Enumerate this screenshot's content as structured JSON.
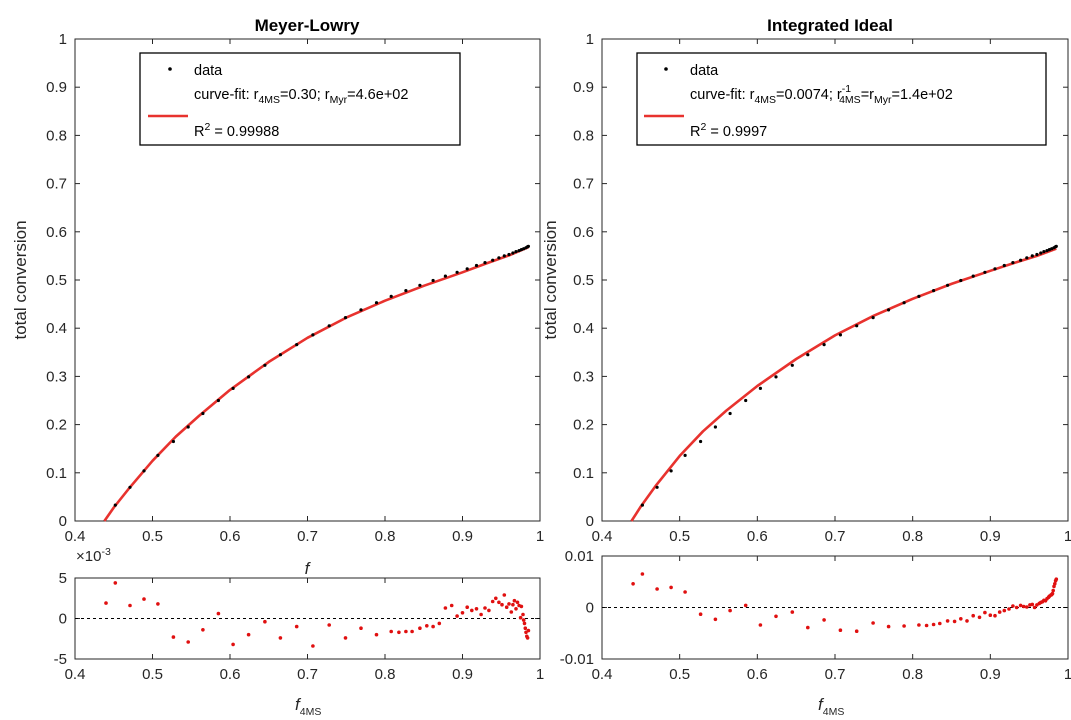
{
  "colors": {
    "data": "#000000",
    "fit": "#e8322e",
    "residual": "#e01010",
    "axis": "#262626"
  },
  "chart_data": [
    {
      "type": "scatter",
      "id": "meyer-lowry-main",
      "title": "Meyer-Lowry",
      "ylabel": "total conversion",
      "xlabel": "f",
      "xlim": [
        0.4,
        1
      ],
      "ylim": [
        0,
        1
      ],
      "xticks": [
        "0.4",
        "0.5",
        "0.6",
        "0.7",
        "0.8",
        "0.9",
        "1"
      ],
      "yticks": [
        "0",
        "0.1",
        "0.2",
        "0.3",
        "0.4",
        "0.5",
        "0.6",
        "0.7",
        "0.8",
        "0.9",
        "1"
      ],
      "legend": {
        "placement": "top",
        "data_label": "data",
        "fit_a": "curve-fit: r",
        "fit_a_sub": "4MS",
        "fit_b": "=0.30; r",
        "fit_b_sub": "Myr",
        "fit_c": "=4.6e+02",
        "r2_a": "R",
        "r2_sup": "2",
        "r2_b": " = 0.99988"
      },
      "series": [
        {
          "kind": "points",
          "x": [
            0.452,
            0.471,
            0.489,
            0.507,
            0.527,
            0.546,
            0.565,
            0.585,
            0.604,
            0.624,
            0.645,
            0.665,
            0.686,
            0.707,
            0.728,
            0.749,
            0.769,
            0.789,
            0.808,
            0.827,
            0.845,
            0.862,
            0.878,
            0.893,
            0.906,
            0.918,
            0.929,
            0.939,
            0.947,
            0.954,
            0.96,
            0.965,
            0.969,
            0.973,
            0.976,
            0.979,
            0.982,
            0.984,
            0.985
          ],
          "y": [
            0.033,
            0.07,
            0.104,
            0.136,
            0.165,
            0.195,
            0.223,
            0.25,
            0.275,
            0.299,
            0.323,
            0.345,
            0.366,
            0.386,
            0.405,
            0.422,
            0.438,
            0.453,
            0.466,
            0.478,
            0.489,
            0.499,
            0.508,
            0.516,
            0.523,
            0.53,
            0.536,
            0.541,
            0.546,
            0.55,
            0.553,
            0.556,
            0.559,
            0.561,
            0.563,
            0.565,
            0.567,
            0.569,
            0.57
          ]
        },
        {
          "kind": "line",
          "x": [
            0.438,
            0.45,
            0.47,
            0.5,
            0.53,
            0.56,
            0.6,
            0.65,
            0.7,
            0.75,
            0.8,
            0.85,
            0.9,
            0.93,
            0.96,
            0.985
          ],
          "y": [
            0.0,
            0.028,
            0.068,
            0.125,
            0.175,
            0.218,
            0.272,
            0.33,
            0.38,
            0.422,
            0.457,
            0.488,
            0.516,
            0.534,
            0.551,
            0.568
          ]
        }
      ]
    },
    {
      "type": "scatter",
      "id": "meyer-lowry-residual",
      "ylabel": "",
      "xlabel_a": "f",
      "xlabel_sub": "4MS",
      "exponent_label": "×10",
      "exponent_sup": "-3",
      "xlim": [
        0.4,
        1
      ],
      "ylim": [
        -5,
        5
      ],
      "xticks": [
        "0.4",
        "0.5",
        "0.6",
        "0.7",
        "0.8",
        "0.9",
        "1"
      ],
      "yticks": [
        "-5",
        "0",
        "5"
      ],
      "series": [
        {
          "kind": "points",
          "x": [
            0.44,
            0.452,
            0.471,
            0.489,
            0.507,
            0.527,
            0.546,
            0.565,
            0.585,
            0.604,
            0.624,
            0.645,
            0.665,
            0.686,
            0.707,
            0.728,
            0.749,
            0.769,
            0.789,
            0.808,
            0.818,
            0.827,
            0.835,
            0.845,
            0.854,
            0.862,
            0.87,
            0.878,
            0.886,
            0.893,
            0.9,
            0.906,
            0.912,
            0.918,
            0.924,
            0.929,
            0.934,
            0.939,
            0.943,
            0.947,
            0.951,
            0.954,
            0.957,
            0.96,
            0.963,
            0.965,
            0.967,
            0.969,
            0.971,
            0.973,
            0.975,
            0.976,
            0.978,
            0.979,
            0.98,
            0.981,
            0.982,
            0.983,
            0.984,
            0.985
          ],
          "y": [
            1.9,
            4.4,
            1.6,
            2.4,
            1.8,
            -2.3,
            -2.9,
            -1.4,
            0.6,
            -3.2,
            -2.0,
            -0.4,
            -2.4,
            -1.0,
            -3.4,
            -0.8,
            -2.4,
            -1.2,
            -2.0,
            -1.6,
            -1.7,
            -1.6,
            -1.6,
            -1.2,
            -0.9,
            -1.0,
            -0.6,
            1.3,
            1.6,
            0.3,
            0.7,
            1.4,
            1.0,
            1.2,
            0.5,
            1.3,
            1.0,
            2.1,
            2.5,
            2.0,
            1.7,
            2.9,
            1.4,
            1.8,
            0.8,
            1.7,
            2.2,
            1.2,
            2.0,
            1.6,
            0.1,
            1.5,
            0.5,
            -0.2,
            -0.6,
            -1.2,
            -1.7,
            -2.2,
            -2.4,
            -1.5
          ]
        }
      ]
    },
    {
      "type": "scatter",
      "id": "integrated-ideal-main",
      "title": "Integrated Ideal",
      "ylabel": "total conversion",
      "xlabel": "",
      "xlim": [
        0.4,
        1
      ],
      "ylim": [
        0,
        1
      ],
      "xticks": [
        "0.4",
        "0.5",
        "0.6",
        "0.7",
        "0.8",
        "0.9",
        "1"
      ],
      "yticks": [
        "0",
        "0.1",
        "0.2",
        "0.3",
        "0.4",
        "0.5",
        "0.6",
        "0.7",
        "0.8",
        "0.9",
        "1"
      ],
      "legend": {
        "placement": "top",
        "data_label": "data",
        "fit_a": "curve-fit: r",
        "fit_a_sub": "4MS",
        "fit_b": "=0.0074; r",
        "fit_b_sup": "-1",
        "fit_b_sub": "4MS",
        "fit_c": "=r",
        "fit_c_sub": "Myr",
        "fit_d": "=1.4e+02",
        "r2_a": "R",
        "r2_sup": "2",
        "r2_b": " = 0.9997"
      },
      "series": [
        {
          "kind": "points",
          "x": [
            0.452,
            0.471,
            0.489,
            0.507,
            0.527,
            0.546,
            0.565,
            0.585,
            0.604,
            0.624,
            0.645,
            0.665,
            0.686,
            0.707,
            0.728,
            0.749,
            0.769,
            0.789,
            0.808,
            0.827,
            0.845,
            0.862,
            0.878,
            0.893,
            0.906,
            0.918,
            0.929,
            0.939,
            0.947,
            0.954,
            0.96,
            0.965,
            0.969,
            0.973,
            0.976,
            0.979,
            0.982,
            0.984,
            0.985
          ],
          "y": [
            0.033,
            0.07,
            0.104,
            0.136,
            0.165,
            0.195,
            0.223,
            0.25,
            0.275,
            0.299,
            0.323,
            0.345,
            0.366,
            0.386,
            0.405,
            0.422,
            0.438,
            0.453,
            0.466,
            0.478,
            0.489,
            0.499,
            0.508,
            0.516,
            0.523,
            0.53,
            0.536,
            0.541,
            0.546,
            0.55,
            0.553,
            0.556,
            0.559,
            0.561,
            0.563,
            0.565,
            0.567,
            0.569,
            0.57
          ]
        },
        {
          "kind": "line",
          "x": [
            0.438,
            0.45,
            0.47,
            0.5,
            0.53,
            0.56,
            0.6,
            0.65,
            0.7,
            0.75,
            0.8,
            0.85,
            0.9,
            0.93,
            0.96,
            0.985
          ],
          "y": [
            0.0,
            0.03,
            0.075,
            0.135,
            0.186,
            0.229,
            0.28,
            0.336,
            0.385,
            0.426,
            0.461,
            0.492,
            0.519,
            0.535,
            0.55,
            0.565
          ]
        }
      ]
    },
    {
      "type": "scatter",
      "id": "integrated-ideal-residual",
      "ylabel": "",
      "xlabel_a": "f",
      "xlabel_sub": "4MS",
      "xlim": [
        0.4,
        1
      ],
      "ylim": [
        -0.01,
        0.01
      ],
      "xticks": [
        "0.4",
        "0.5",
        "0.6",
        "0.7",
        "0.8",
        "0.9",
        "1"
      ],
      "yticks": [
        "-0.01",
        "0",
        "0.01"
      ],
      "series": [
        {
          "kind": "points",
          "x": [
            0.44,
            0.452,
            0.471,
            0.489,
            0.507,
            0.527,
            0.546,
            0.565,
            0.585,
            0.604,
            0.624,
            0.645,
            0.665,
            0.686,
            0.707,
            0.728,
            0.749,
            0.769,
            0.789,
            0.808,
            0.818,
            0.827,
            0.835,
            0.845,
            0.854,
            0.862,
            0.87,
            0.878,
            0.886,
            0.893,
            0.9,
            0.906,
            0.912,
            0.918,
            0.924,
            0.929,
            0.934,
            0.939,
            0.943,
            0.947,
            0.951,
            0.954,
            0.957,
            0.96,
            0.963,
            0.965,
            0.967,
            0.969,
            0.971,
            0.973,
            0.975,
            0.976,
            0.978,
            0.979,
            0.98,
            0.981,
            0.982,
            0.983,
            0.984,
            0.985
          ],
          "y": [
            0.0046,
            0.0065,
            0.0036,
            0.0039,
            0.003,
            -0.0013,
            -0.0023,
            -0.0006,
            0.0004,
            -0.0034,
            -0.0017,
            -0.0009,
            -0.0039,
            -0.0024,
            -0.0044,
            -0.0046,
            -0.003,
            -0.0037,
            -0.0036,
            -0.0034,
            -0.0035,
            -0.0033,
            -0.0031,
            -0.0026,
            -0.0027,
            -0.0022,
            -0.0026,
            -0.0016,
            -0.0019,
            -0.001,
            -0.0015,
            -0.0016,
            -0.0009,
            -0.0006,
            -0.0003,
            0.0003,
            0.0,
            0.0004,
            0.0002,
            0.0001,
            0.0005,
            0.0006,
            0.0,
            0.0005,
            0.0008,
            0.001,
            0.0011,
            0.0014,
            0.0013,
            0.0017,
            0.002,
            0.0022,
            0.0024,
            0.0025,
            0.0027,
            0.0033,
            0.0041,
            0.0046,
            0.0052,
            0.0055
          ]
        }
      ]
    }
  ]
}
